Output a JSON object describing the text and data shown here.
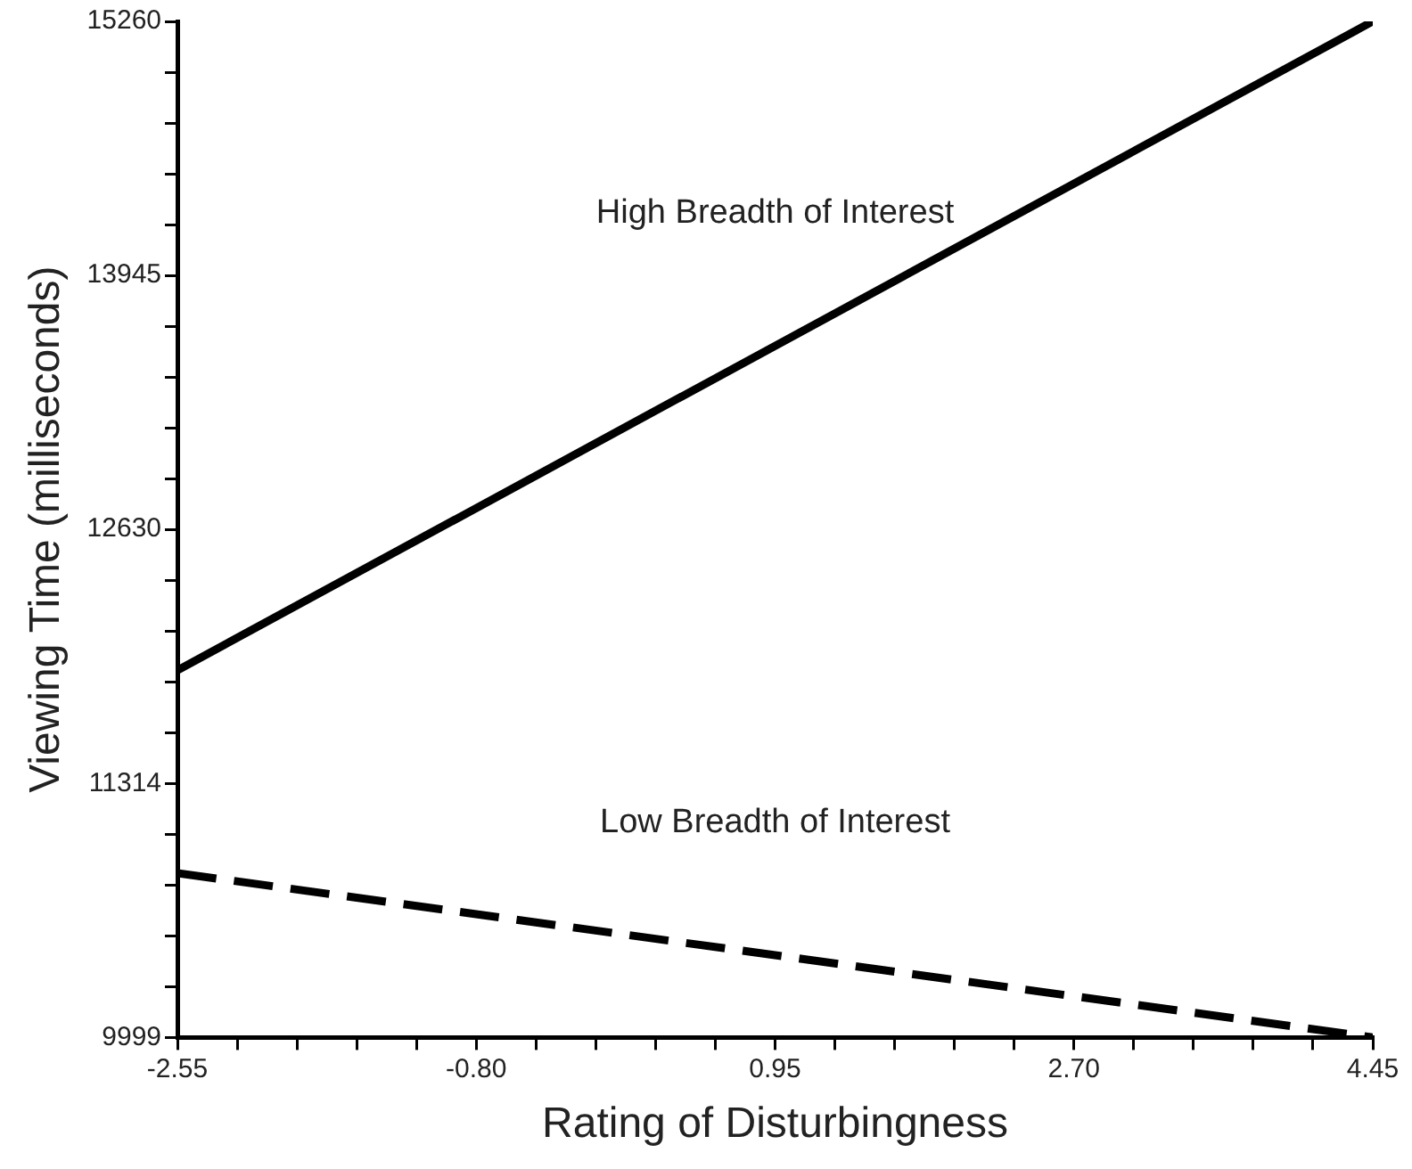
{
  "chart_data": {
    "type": "line",
    "xlabel": "Rating of Disturbingness",
    "ylabel": "Viewing Time (milliseconds)",
    "x": [
      -2.55,
      4.45
    ],
    "series": [
      {
        "name": "High Breadth of Interest",
        "color": "#000000",
        "values": [
          11900,
          15260
        ],
        "line_style": "solid"
      },
      {
        "name": "Low Breadth of Interest",
        "color": "#000000",
        "values": [
          10850,
          10000
        ],
        "line_style": "dashed"
      }
    ],
    "xlim": [
      -2.55,
      4.45
    ],
    "xticks": [
      -2.55,
      {
        "value": -2.2,
        "label": null
      },
      {
        "value": -1.85,
        "label": null
      },
      {
        "value": -1.5,
        "label": null
      },
      {
        "value": -1.15,
        "label": null
      },
      {
        "value": -0.8,
        "label": "-0.80"
      },
      {
        "value": -0.45,
        "label": null
      },
      {
        "value": -0.1,
        "label": null
      },
      {
        "value": 0.25,
        "label": null
      },
      {
        "value": 0.6,
        "label": null
      },
      0.95,
      {
        "value": 1.3,
        "label": null
      },
      {
        "value": 1.65,
        "label": null
      },
      {
        "value": 2.0,
        "label": null
      },
      {
        "value": 2.35,
        "label": null
      },
      {
        "value": 2.7,
        "label": "2.70"
      },
      {
        "value": 3.05,
        "label": null
      },
      {
        "value": 3.4,
        "label": null
      },
      {
        "value": 3.75,
        "label": null
      },
      {
        "value": 4.1,
        "label": null
      },
      4.45
    ],
    "ylim": [
      9999,
      15260
    ],
    "yticks": [
      9999,
      {
        "value": 10262,
        "label": null
      },
      {
        "value": 10525,
        "label": null
      },
      {
        "value": 10788,
        "label": null
      },
      {
        "value": 11051,
        "label": null
      },
      11314,
      {
        "value": 11577,
        "label": null
      },
      {
        "value": 11840,
        "label": null
      },
      {
        "value": 12103,
        "label": null
      },
      {
        "value": 12367,
        "label": null
      },
      12630,
      {
        "value": 12893,
        "label": null
      },
      {
        "value": 13156,
        "label": null
      },
      {
        "value": 13419,
        "label": null
      },
      {
        "value": 13682,
        "label": null
      },
      13945,
      {
        "value": 14208,
        "label": null
      },
      {
        "value": 14471,
        "label": null
      },
      {
        "value": 14734,
        "label": null
      },
      {
        "value": 14997,
        "label": null
      },
      15260
    ],
    "grid": false,
    "legend": false,
    "marker": "none"
  }
}
